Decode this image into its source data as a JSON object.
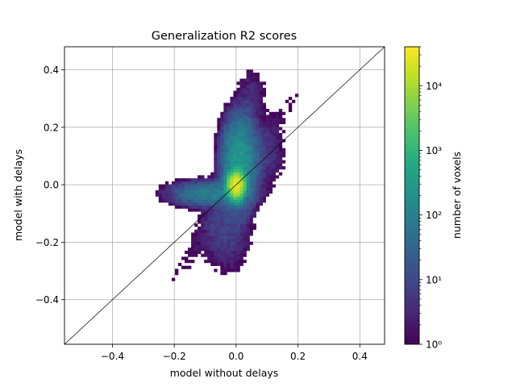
{
  "chart_data": {
    "type": "heatmap",
    "title": "Generalization R2 scores",
    "xlabel": "model without delays",
    "ylabel": "model with delays",
    "xlim": [
      -0.555,
      0.48
    ],
    "ylim": [
      -0.555,
      0.48
    ],
    "x_ticks": [
      -0.4,
      -0.2,
      0.0,
      0.2,
      0.4
    ],
    "y_ticks": [
      -0.4,
      -0.2,
      0.0,
      0.2,
      0.4
    ],
    "x_tick_labels": [
      "−0.4",
      "−0.2",
      "0.0",
      "0.2",
      "0.4"
    ],
    "y_tick_labels": [
      "−0.4",
      "−0.2",
      "0.0",
      "0.2",
      "0.4"
    ],
    "grid": true,
    "reference_line": "y = x diagonal",
    "colormap": "viridis",
    "colorbar": {
      "label": "number of voxels",
      "scale": "log",
      "range": [
        1,
        40000
      ],
      "ticks": [
        1,
        10,
        100,
        1000,
        10000
      ],
      "tick_labels": [
        "10⁰",
        "10¹",
        "10²",
        "10³",
        "10⁴"
      ]
    },
    "density_clusters": [
      {
        "x": 0.0,
        "y": 0.0,
        "peak_count": 30000,
        "sx": 0.012,
        "sy": 0.02
      },
      {
        "x": 0.01,
        "y": 0.08,
        "peak_count": 300,
        "sx": 0.025,
        "sy": 0.07
      },
      {
        "x": 0.05,
        "y": 0.3,
        "peak_count": 4,
        "sx": 0.025,
        "sy": 0.06
      },
      {
        "x": -0.08,
        "y": -0.03,
        "peak_count": 100,
        "sx": 0.06,
        "sy": 0.02
      },
      {
        "x": -0.03,
        "y": -0.15,
        "peak_count": 8,
        "sx": 0.04,
        "sy": 0.08
      },
      {
        "x": 0.08,
        "y": 0.1,
        "peak_count": 6,
        "sx": 0.04,
        "sy": 0.06
      }
    ]
  }
}
